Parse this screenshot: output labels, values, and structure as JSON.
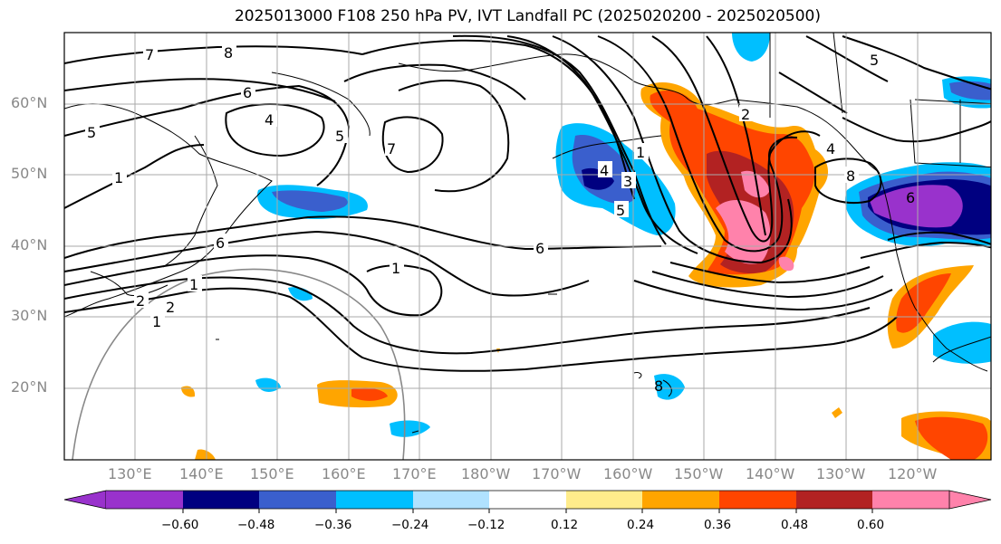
{
  "title": "2025013000 F108 250 hPa PV, IVT Landfall PC (2025020200 - 2025020500)",
  "map": {
    "lat_labels": [
      "60°N",
      "50°N",
      "40°N",
      "30°N",
      "20°N"
    ],
    "lon_labels": [
      "130°E",
      "140°E",
      "150°E",
      "160°E",
      "170°E",
      "180°W",
      "170°W",
      "160°W",
      "150°W",
      "140°W",
      "130°W",
      "120°W"
    ],
    "pv_contour_labels": [
      "7",
      "8",
      "6",
      "5",
      "4",
      "5",
      "7",
      "1",
      "6",
      "1",
      "2",
      "1",
      "3",
      "4",
      "5",
      "6",
      "2",
      "4",
      "8",
      "6",
      "5",
      "1",
      "2",
      "1",
      "8"
    ]
  },
  "colorbar": {
    "tick_labels": [
      "−0.60",
      "−0.48",
      "−0.36",
      "−0.24",
      "−0.12",
      "0.12",
      "0.24",
      "0.36",
      "0.48",
      "0.60"
    ],
    "colors": [
      "#9932cc",
      "#000080",
      "#3a5fcd",
      "#00bfff",
      "#b0e2ff",
      "#ffffff",
      "#ffec8b",
      "#ffa500",
      "#ff4500",
      "#b22222",
      "#ff82ab",
      "#ff82ab"
    ]
  }
}
